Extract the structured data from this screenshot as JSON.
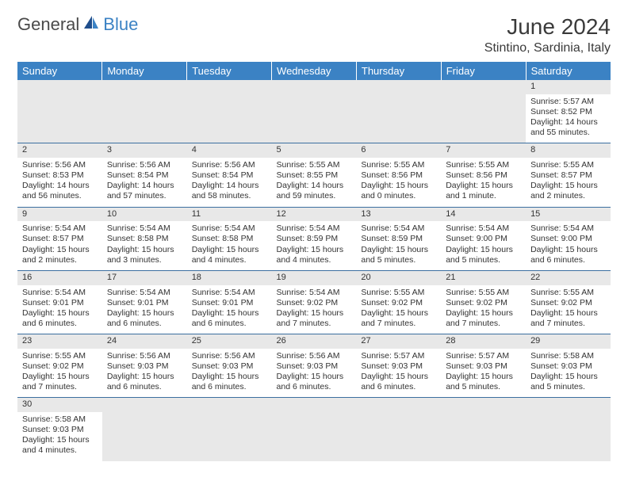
{
  "brand": {
    "general": "General",
    "blue": "Blue"
  },
  "title": "June 2024",
  "location": "Stintino, Sardinia, Italy",
  "colors": {
    "header_bg": "#3b82c4",
    "header_text": "#ffffff",
    "daynum_bg": "#e8e8e8",
    "border": "#3b6fa0",
    "text": "#333333",
    "logo_gray": "#4a4a4a",
    "logo_blue": "#3b82c4"
  },
  "day_headers": [
    "Sunday",
    "Monday",
    "Tuesday",
    "Wednesday",
    "Thursday",
    "Friday",
    "Saturday"
  ],
  "weeks": [
    [
      null,
      null,
      null,
      null,
      null,
      null,
      {
        "n": "1",
        "sr": "Sunrise: 5:57 AM",
        "ss": "Sunset: 8:52 PM",
        "dl": "Daylight: 14 hours and 55 minutes."
      }
    ],
    [
      {
        "n": "2",
        "sr": "Sunrise: 5:56 AM",
        "ss": "Sunset: 8:53 PM",
        "dl": "Daylight: 14 hours and 56 minutes."
      },
      {
        "n": "3",
        "sr": "Sunrise: 5:56 AM",
        "ss": "Sunset: 8:54 PM",
        "dl": "Daylight: 14 hours and 57 minutes."
      },
      {
        "n": "4",
        "sr": "Sunrise: 5:56 AM",
        "ss": "Sunset: 8:54 PM",
        "dl": "Daylight: 14 hours and 58 minutes."
      },
      {
        "n": "5",
        "sr": "Sunrise: 5:55 AM",
        "ss": "Sunset: 8:55 PM",
        "dl": "Daylight: 14 hours and 59 minutes."
      },
      {
        "n": "6",
        "sr": "Sunrise: 5:55 AM",
        "ss": "Sunset: 8:56 PM",
        "dl": "Daylight: 15 hours and 0 minutes."
      },
      {
        "n": "7",
        "sr": "Sunrise: 5:55 AM",
        "ss": "Sunset: 8:56 PM",
        "dl": "Daylight: 15 hours and 1 minute."
      },
      {
        "n": "8",
        "sr": "Sunrise: 5:55 AM",
        "ss": "Sunset: 8:57 PM",
        "dl": "Daylight: 15 hours and 2 minutes."
      }
    ],
    [
      {
        "n": "9",
        "sr": "Sunrise: 5:54 AM",
        "ss": "Sunset: 8:57 PM",
        "dl": "Daylight: 15 hours and 2 minutes."
      },
      {
        "n": "10",
        "sr": "Sunrise: 5:54 AM",
        "ss": "Sunset: 8:58 PM",
        "dl": "Daylight: 15 hours and 3 minutes."
      },
      {
        "n": "11",
        "sr": "Sunrise: 5:54 AM",
        "ss": "Sunset: 8:58 PM",
        "dl": "Daylight: 15 hours and 4 minutes."
      },
      {
        "n": "12",
        "sr": "Sunrise: 5:54 AM",
        "ss": "Sunset: 8:59 PM",
        "dl": "Daylight: 15 hours and 4 minutes."
      },
      {
        "n": "13",
        "sr": "Sunrise: 5:54 AM",
        "ss": "Sunset: 8:59 PM",
        "dl": "Daylight: 15 hours and 5 minutes."
      },
      {
        "n": "14",
        "sr": "Sunrise: 5:54 AM",
        "ss": "Sunset: 9:00 PM",
        "dl": "Daylight: 15 hours and 5 minutes."
      },
      {
        "n": "15",
        "sr": "Sunrise: 5:54 AM",
        "ss": "Sunset: 9:00 PM",
        "dl": "Daylight: 15 hours and 6 minutes."
      }
    ],
    [
      {
        "n": "16",
        "sr": "Sunrise: 5:54 AM",
        "ss": "Sunset: 9:01 PM",
        "dl": "Daylight: 15 hours and 6 minutes."
      },
      {
        "n": "17",
        "sr": "Sunrise: 5:54 AM",
        "ss": "Sunset: 9:01 PM",
        "dl": "Daylight: 15 hours and 6 minutes."
      },
      {
        "n": "18",
        "sr": "Sunrise: 5:54 AM",
        "ss": "Sunset: 9:01 PM",
        "dl": "Daylight: 15 hours and 6 minutes."
      },
      {
        "n": "19",
        "sr": "Sunrise: 5:54 AM",
        "ss": "Sunset: 9:02 PM",
        "dl": "Daylight: 15 hours and 7 minutes."
      },
      {
        "n": "20",
        "sr": "Sunrise: 5:55 AM",
        "ss": "Sunset: 9:02 PM",
        "dl": "Daylight: 15 hours and 7 minutes."
      },
      {
        "n": "21",
        "sr": "Sunrise: 5:55 AM",
        "ss": "Sunset: 9:02 PM",
        "dl": "Daylight: 15 hours and 7 minutes."
      },
      {
        "n": "22",
        "sr": "Sunrise: 5:55 AM",
        "ss": "Sunset: 9:02 PM",
        "dl": "Daylight: 15 hours and 7 minutes."
      }
    ],
    [
      {
        "n": "23",
        "sr": "Sunrise: 5:55 AM",
        "ss": "Sunset: 9:02 PM",
        "dl": "Daylight: 15 hours and 7 minutes."
      },
      {
        "n": "24",
        "sr": "Sunrise: 5:56 AM",
        "ss": "Sunset: 9:03 PM",
        "dl": "Daylight: 15 hours and 6 minutes."
      },
      {
        "n": "25",
        "sr": "Sunrise: 5:56 AM",
        "ss": "Sunset: 9:03 PM",
        "dl": "Daylight: 15 hours and 6 minutes."
      },
      {
        "n": "26",
        "sr": "Sunrise: 5:56 AM",
        "ss": "Sunset: 9:03 PM",
        "dl": "Daylight: 15 hours and 6 minutes."
      },
      {
        "n": "27",
        "sr": "Sunrise: 5:57 AM",
        "ss": "Sunset: 9:03 PM",
        "dl": "Daylight: 15 hours and 6 minutes."
      },
      {
        "n": "28",
        "sr": "Sunrise: 5:57 AM",
        "ss": "Sunset: 9:03 PM",
        "dl": "Daylight: 15 hours and 5 minutes."
      },
      {
        "n": "29",
        "sr": "Sunrise: 5:58 AM",
        "ss": "Sunset: 9:03 PM",
        "dl": "Daylight: 15 hours and 5 minutes."
      }
    ],
    [
      {
        "n": "30",
        "sr": "Sunrise: 5:58 AM",
        "ss": "Sunset: 9:03 PM",
        "dl": "Daylight: 15 hours and 4 minutes."
      },
      null,
      null,
      null,
      null,
      null,
      null
    ]
  ]
}
